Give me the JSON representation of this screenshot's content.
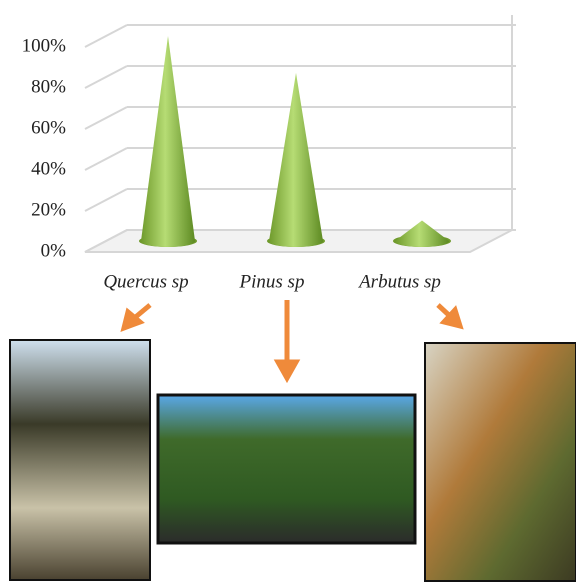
{
  "chart_data": {
    "type": "cone",
    "categories": [
      "Quercus sp",
      "Pinus sp",
      "Arbutus sp"
    ],
    "values": [
      100,
      82,
      10
    ],
    "color": "#8dba45",
    "ylim": [
      0,
      100
    ],
    "yticks": [
      {
        "value": 0,
        "label": "0%"
      },
      {
        "value": 20,
        "label": "20%"
      },
      {
        "value": 40,
        "label": "40%"
      },
      {
        "value": 60,
        "label": "60%"
      },
      {
        "value": 80,
        "label": "80%"
      },
      {
        "value": 100,
        "label": "100%"
      }
    ],
    "grid": true
  }
}
